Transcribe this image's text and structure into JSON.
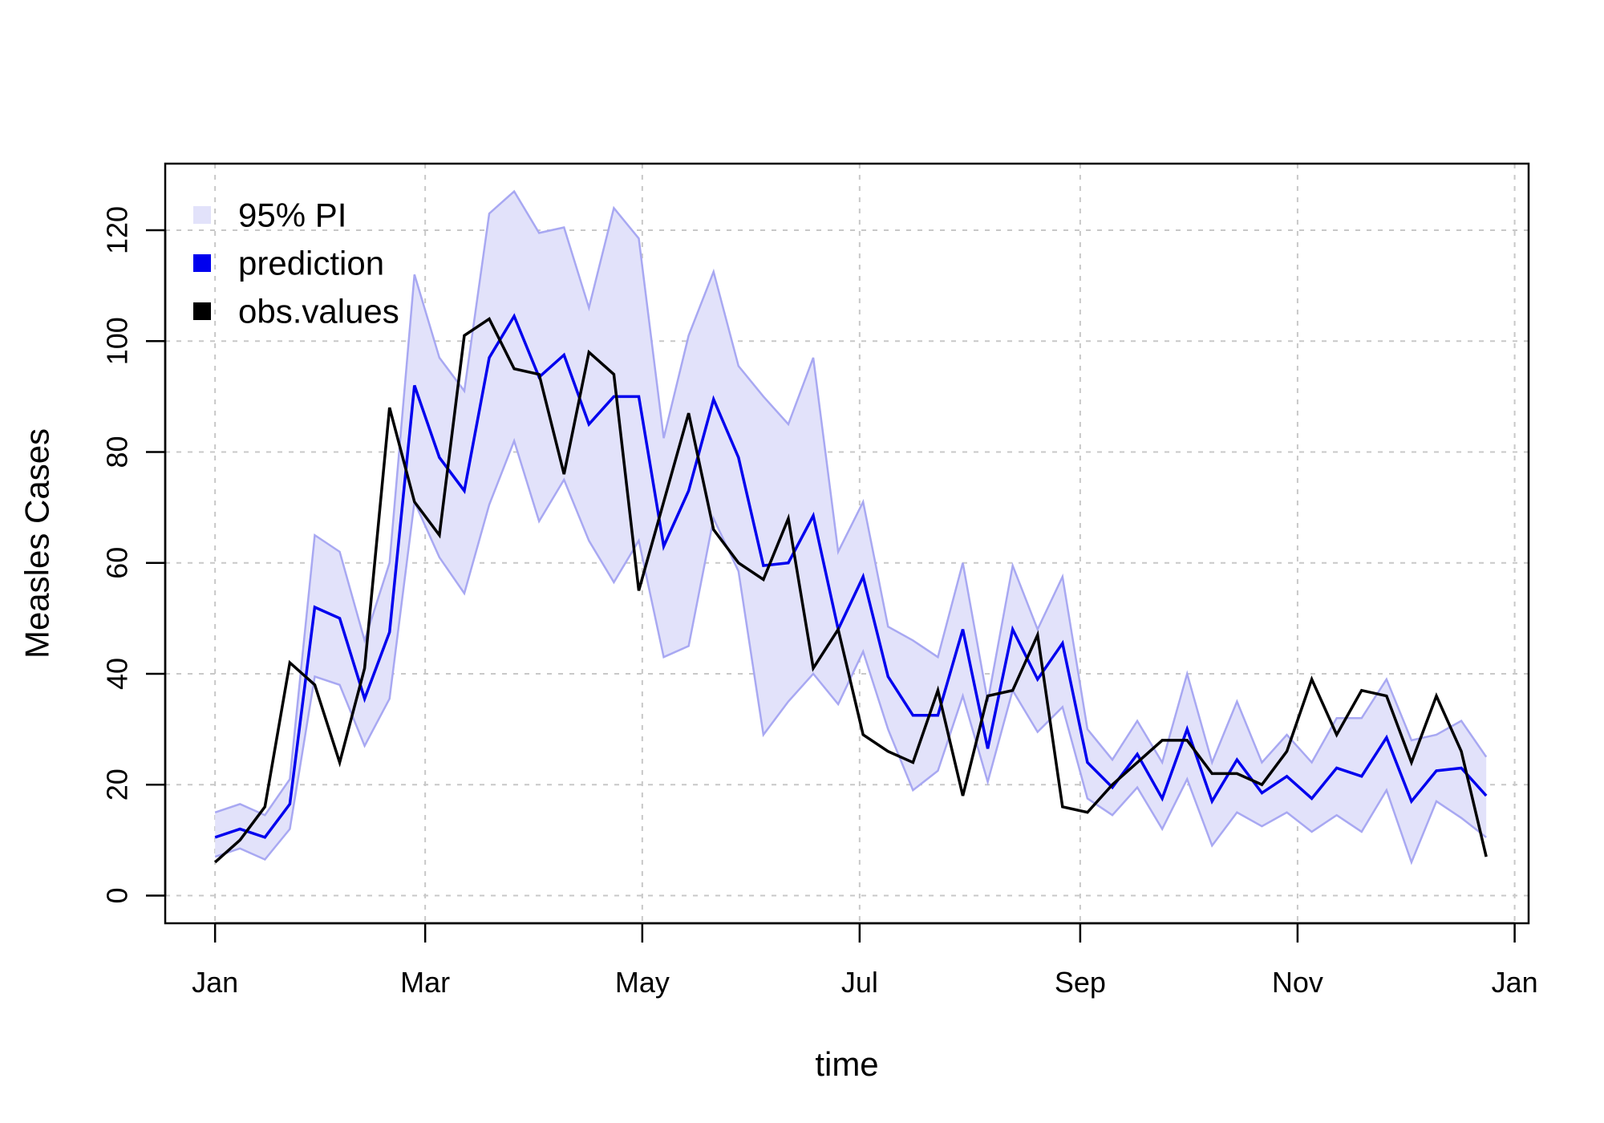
{
  "chart_data": {
    "type": "line",
    "xlabel": "time",
    "ylabel": "Measles Cases",
    "x_axis": {
      "ticks": [
        {
          "week": 0,
          "label": "Jan"
        },
        {
          "week": 8.43,
          "label": "Mar"
        },
        {
          "week": 17.14,
          "label": "May"
        },
        {
          "week": 25.86,
          "label": "Jul"
        },
        {
          "week": 34.71,
          "label": "Sep"
        },
        {
          "week": 43.43,
          "label": "Nov"
        },
        {
          "week": 52.14,
          "label": "Jan"
        }
      ],
      "range": [
        -2,
        52.7
      ]
    },
    "y_axis": {
      "ticks": [
        0,
        20,
        40,
        60,
        80,
        100,
        120
      ],
      "range": [
        -5,
        132
      ]
    },
    "grid": true,
    "legend_position": "top-left",
    "legend": [
      {
        "label": "95% PI",
        "color": "#e2e2fa"
      },
      {
        "label": "prediction",
        "color": "#0000ee"
      },
      {
        "label": "obs.values",
        "color": "#000000"
      }
    ],
    "colors": {
      "band_fill": "#e2e2fa",
      "band_edge": "#a8a8f2",
      "prediction": "#0000ee",
      "observed": "#000000",
      "grid": "#c8c8c8"
    },
    "weeks": [
      0,
      1,
      2,
      3,
      4,
      5,
      6,
      7,
      8,
      9,
      10,
      11,
      12,
      13,
      14,
      15,
      16,
      17,
      18,
      19,
      20,
      21,
      22,
      23,
      24,
      25,
      26,
      27,
      28,
      29,
      30,
      31,
      32,
      33,
      34,
      35,
      36,
      37,
      38,
      39,
      40,
      41,
      42,
      43,
      44,
      45,
      46,
      47,
      48,
      49,
      50,
      51
    ],
    "series": [
      {
        "name": "obs.values",
        "values": [
          6,
          10,
          16,
          42,
          38,
          24,
          41,
          88,
          71,
          65,
          101,
          104,
          95,
          94,
          76,
          98,
          94,
          55,
          71,
          87,
          66,
          60,
          57,
          68,
          41,
          48,
          29,
          26,
          24,
          37,
          18,
          36,
          37,
          47,
          16,
          15,
          20,
          24,
          28,
          28,
          22,
          22,
          20,
          26,
          39,
          29,
          37,
          36,
          24,
          36,
          26,
          7
        ]
      },
      {
        "name": "prediction",
        "values": [
          10.5,
          12,
          10.5,
          16.5,
          52,
          50,
          35.5,
          47.5,
          92,
          79,
          73,
          97,
          104.5,
          93.5,
          97.5,
          85,
          90,
          90,
          63,
          73,
          89.5,
          79,
          59.5,
          60,
          68.5,
          48,
          57.5,
          39.5,
          32.5,
          32.5,
          48,
          26.5,
          48,
          39,
          45.5,
          24,
          19.5,
          25.5,
          17.5,
          30,
          17,
          24.5,
          18.5,
          21.5,
          17.5,
          23,
          21.5,
          28.5,
          17,
          22.5,
          23,
          18
        ]
      }
    ],
    "band": {
      "name": "95% PI",
      "upper": [
        15,
        16.5,
        14.5,
        21,
        65,
        62,
        46,
        60,
        112,
        97,
        91,
        123,
        127,
        119.5,
        120.5,
        106,
        124,
        118.5,
        82.5,
        101,
        112.5,
        95.5,
        90,
        85,
        97,
        62,
        71,
        48.5,
        46,
        43,
        60,
        35,
        59.5,
        48,
        57.5,
        30,
        24.5,
        31.5,
        24,
        40,
        24,
        35,
        24,
        29,
        24,
        32,
        32,
        39,
        28,
        29,
        31.5,
        25
      ],
      "lower": [
        7,
        8.5,
        6.5,
        12,
        39.5,
        38,
        27,
        35.5,
        71,
        61,
        54.5,
        70.5,
        82,
        67.5,
        75,
        64,
        56.5,
        64,
        43,
        45,
        68,
        58.5,
        29,
        35,
        40,
        34.5,
        44,
        30,
        19,
        22.5,
        36,
        20.5,
        37,
        29.5,
        34,
        17.5,
        14.5,
        19.5,
        12,
        21,
        9,
        15,
        12.5,
        15,
        11.5,
        14.5,
        11.5,
        19,
        6,
        17,
        14,
        10.5
      ]
    }
  }
}
